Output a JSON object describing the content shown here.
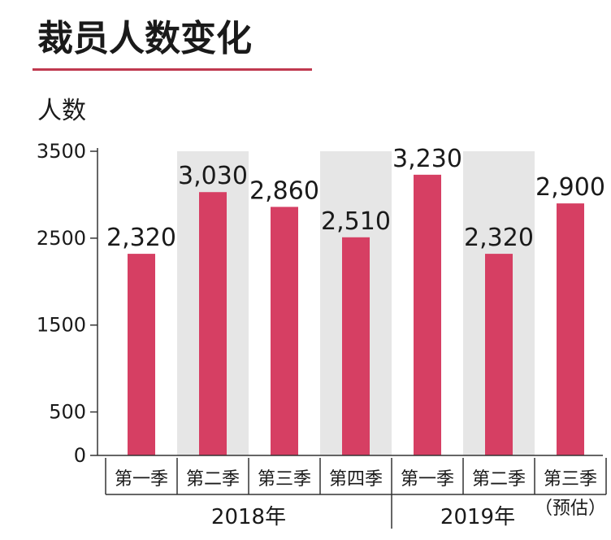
{
  "title": "裁员人数变化",
  "ylabel": "人数",
  "colors": {
    "bar": "#d63f63",
    "band": "#e6e6e6",
    "rule": "#c0394f",
    "text": "#1a1a1a",
    "axis": "#333333"
  },
  "chart_data": {
    "type": "bar",
    "title": "裁员人数变化",
    "ylabel": "人数",
    "xlabel": "",
    "categories": [
      "第一季",
      "第二季",
      "第三季",
      "第四季",
      "第一季",
      "第二季",
      "第三季"
    ],
    "category_notes": [
      "",
      "",
      "",
      "",
      "",
      "",
      "（预估）"
    ],
    "groups": [
      {
        "label": "2018年",
        "start": 0,
        "end": 3
      },
      {
        "label": "2019年",
        "start": 4,
        "end": 6
      }
    ],
    "values": [
      2320,
      3030,
      2860,
      2510,
      3230,
      2320,
      2900
    ],
    "value_labels": [
      "2,320",
      "3,030",
      "2,860",
      "2,510",
      "3,230",
      "2,320",
      "2,900"
    ],
    "yticks": [
      "0",
      "500",
      "1500",
      "2500",
      "3500"
    ],
    "ylim": [
      0,
      3500
    ],
    "shaded_categories": [
      1,
      3,
      5
    ],
    "grid": false,
    "legend": "none"
  }
}
